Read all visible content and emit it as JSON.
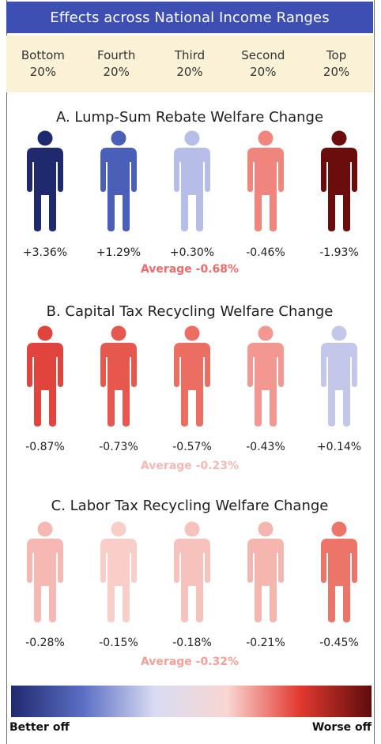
{
  "title": "Effects across National Income Ranges",
  "income_ranges": [
    {
      "line1": "Bottom",
      "line2": "20%"
    },
    {
      "line1": "Fourth",
      "line2": "20%"
    },
    {
      "line1": "Third",
      "line2": "20%"
    },
    {
      "line1": "Second",
      "line2": "20%"
    },
    {
      "line1": "Top",
      "line2": "20%"
    }
  ],
  "sections": [
    {
      "title": "A. Lump-Sum Rebate Welfare Change",
      "values": [
        "+3.36%",
        "+1.29%",
        "+0.30%",
        "-0.46%",
        "-1.93%"
      ],
      "colors": [
        "#1f2a6e",
        "#4a60b8",
        "#b6bde6",
        "#f0857d",
        "#6b0d0d"
      ],
      "average": "Average -0.68%",
      "average_color": "#f06a6a"
    },
    {
      "title": "B. Capital Tax Recycling Welfare Change",
      "values": [
        "-0.87%",
        "-0.73%",
        "-0.57%",
        "-0.43%",
        "+0.14%"
      ],
      "colors": [
        "#e0443c",
        "#e6584e",
        "#ec6d62",
        "#f39890",
        "#c3c8ea"
      ],
      "average": "Average -0.23%",
      "average_color": "#f7b7b2"
    },
    {
      "title": "C. Labor Tax Recycling Welfare Change",
      "values": [
        "-0.28%",
        "-0.15%",
        "-0.18%",
        "-0.21%",
        "-0.45%"
      ],
      "colors": [
        "#f6b8b3",
        "#f9cdc8",
        "#f7c1bc",
        "#f6b6b0",
        "#ec7468"
      ],
      "average": "Average -0.32%",
      "average_color": "#f4a09a"
    }
  ],
  "scale": {
    "left_label": "Better off",
    "right_label": "Worse off",
    "gradient_colors": [
      "#1f2a6e",
      "#5c6fc4",
      "#d9dcf2",
      "#f8d6d2",
      "#e23a30",
      "#5e0c0c"
    ]
  }
}
